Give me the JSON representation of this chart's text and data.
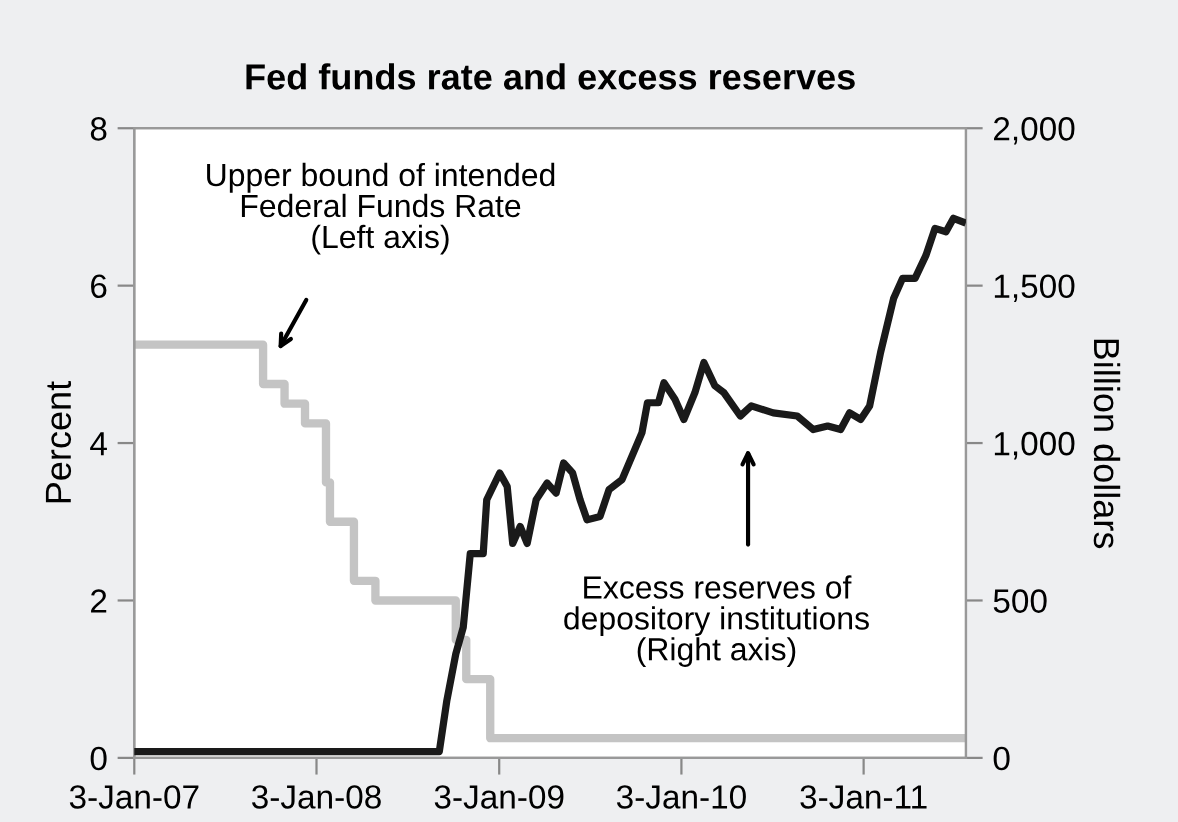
{
  "chart_data": {
    "type": "line",
    "title": "Fed funds rate and excess reserves",
    "ylabel": "Percent",
    "y2label": "Billion dollars",
    "xlim": [
      "2007-01-03",
      "2011-07-27"
    ],
    "xticks": [
      {
        "value": "2007-01-03",
        "label": "3-Jan-07"
      },
      {
        "value": "2008-01-03",
        "label": "3-Jan-08"
      },
      {
        "value": "2009-01-03",
        "label": "3-Jan-09"
      },
      {
        "value": "2010-01-03",
        "label": "3-Jan-10"
      },
      {
        "value": "2011-01-03",
        "label": "3-Jan-11"
      }
    ],
    "ylim": [
      0,
      8
    ],
    "yticks": [
      0,
      2,
      4,
      6,
      8
    ],
    "y2lim": [
      0,
      2000
    ],
    "y2ticks": [
      0,
      {
        "value": 500,
        "label": "500"
      },
      {
        "value": 1000,
        "label": "1,000"
      },
      {
        "value": 1500,
        "label": "1,500"
      },
      {
        "value": 2000,
        "label": "2,000"
      }
    ],
    "grid": false,
    "legend": false,
    "marker": "none",
    "line_style": "solid",
    "series": [
      {
        "type": "step",
        "color": "#c4c4c4",
        "x": [
          "2007-01-03",
          "2007-09-18",
          "2007-10-31",
          "2007-12-11",
          "2008-01-22",
          "2008-01-30",
          "2008-03-18",
          "2008-04-30",
          "2008-10-08",
          "2008-10-29",
          "2008-12-16",
          "2011-07-27"
        ],
        "values": [
          5.25,
          4.75,
          4.5,
          4.25,
          3.5,
          3.0,
          2.25,
          2.0,
          1.5,
          1.0,
          0.25,
          0.25
        ]
      },
      {
        "type": "line",
        "axis": "y2",
        "color": "#1a1a1a",
        "x": [
          "2007-01-03",
          "2008-09-05",
          "2008-09-20",
          "2008-10-08",
          "2008-10-23",
          "2008-11-06",
          "2008-12-02",
          "2008-12-09",
          "2009-01-04",
          "2009-01-19",
          "2009-01-30",
          "2009-02-14",
          "2009-02-28",
          "2009-03-18",
          "2009-04-09",
          "2009-04-27",
          "2009-05-12",
          "2009-05-30",
          "2009-06-14",
          "2009-06-28",
          "2009-07-24",
          "2009-08-11",
          "2009-09-06",
          "2009-10-16",
          "2009-10-27",
          "2009-11-18",
          "2009-11-29",
          "2009-12-21",
          "2010-01-08",
          "2010-01-30",
          "2010-02-17",
          "2010-03-11",
          "2010-03-29",
          "2010-05-01",
          "2010-05-23",
          "2010-07-06",
          "2010-08-23",
          "2010-09-24",
          "2010-10-23",
          "2010-11-18",
          "2010-12-06",
          "2010-12-28",
          "2011-01-15",
          "2011-02-06",
          "2011-03-04",
          "2011-03-22",
          "2011-04-16",
          "2011-05-08",
          "2011-05-26",
          "2011-06-17",
          "2011-07-02",
          "2011-07-20"
        ],
        "values": [
          20,
          20,
          181,
          330,
          415,
          649,
          649,
          820,
          905,
          862,
          681,
          735,
          681,
          820,
          873,
          841,
          937,
          905,
          820,
          756,
          767,
          852,
          884,
          1033,
          1128,
          1128,
          1192,
          1139,
          1075,
          1160,
          1256,
          1182,
          1160,
          1086,
          1118,
          1096,
          1086,
          1043,
          1054,
          1043,
          1096,
          1075,
          1118,
          1288,
          1459,
          1523,
          1523,
          1597,
          1682,
          1671,
          1714,
          1703
        ]
      }
    ],
    "annotations": [
      "Upper bound of intended\nFederal Funds Rate\n(Left axis)",
      "Excess reserves of\ndepository institutions\n(Right axis)"
    ]
  }
}
